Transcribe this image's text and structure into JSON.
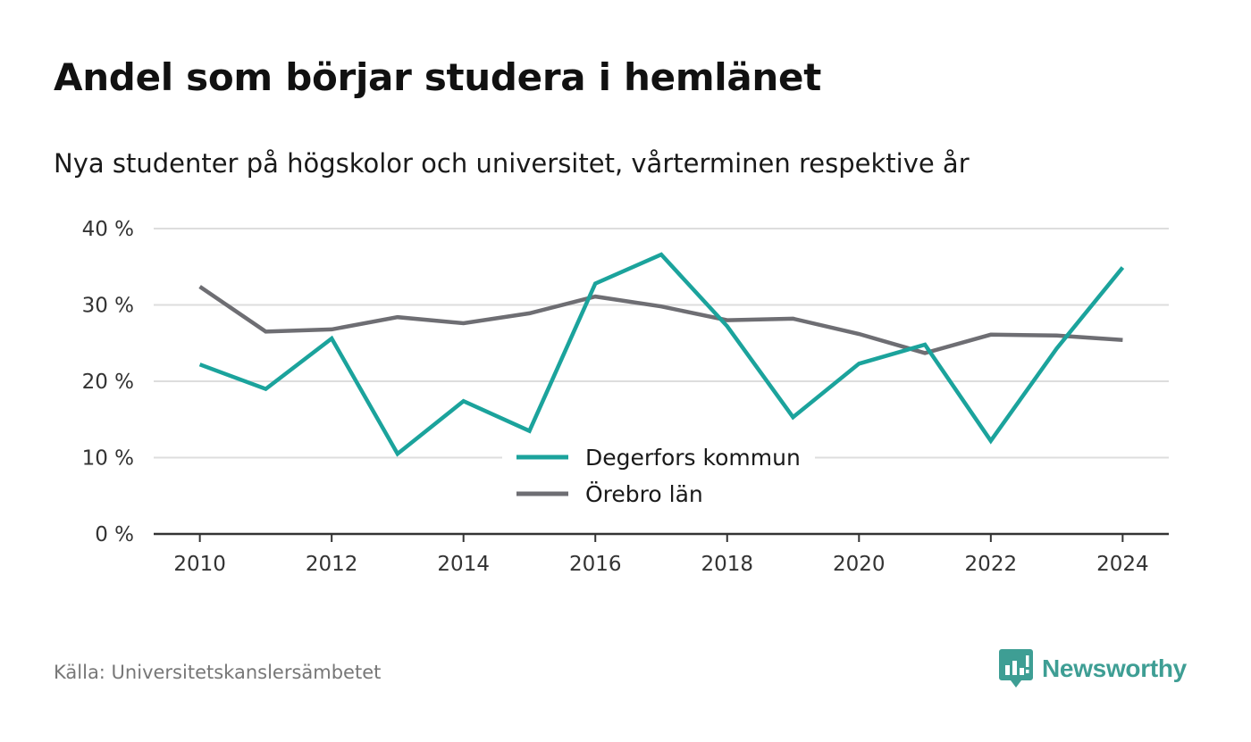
{
  "header": {
    "title": "Andel som börjar studera i hemlänet",
    "subtitle": "Nya studenter på högskolor och universitet, vårterminen respektive år"
  },
  "footer": {
    "source": "Källa: Universitetskanslersämbetet",
    "brand": "Newsworthy",
    "brand_icon": "newsworthy-logo-icon"
  },
  "colors": {
    "degerfors": "#1ba39c",
    "orebro": "#6e6e73",
    "grid": "#dddddd",
    "axis": "#333333",
    "brand": "#3e9e94"
  },
  "chart_data": {
    "type": "line",
    "x": [
      2010,
      2011,
      2012,
      2013,
      2014,
      2015,
      2016,
      2017,
      2018,
      2019,
      2020,
      2021,
      2022,
      2023,
      2024
    ],
    "x_ticks": [
      2010,
      2012,
      2014,
      2016,
      2018,
      2020,
      2022,
      2024
    ],
    "x_tick_labels": [
      "2010",
      "2012",
      "2014",
      "2016",
      "2018",
      "2020",
      "2022",
      "2024"
    ],
    "y_ticks": [
      0,
      10,
      20,
      30,
      40
    ],
    "y_tick_labels": [
      "0 %",
      "10 %",
      "20 %",
      "30 %",
      "40 %"
    ],
    "ylim": [
      0,
      40
    ],
    "xlim": [
      2009.3,
      2024.7
    ],
    "grid": true,
    "legend_position": "bottom-center",
    "series": [
      {
        "name": "Degerfors kommun",
        "color": "#1ba39c",
        "values": [
          22.2,
          19.0,
          25.6,
          10.5,
          17.4,
          13.5,
          32.8,
          36.6,
          27.2,
          15.3,
          22.3,
          24.8,
          12.2,
          24.3,
          34.9
        ]
      },
      {
        "name": "Örebro län",
        "color": "#6e6e73",
        "values": [
          32.4,
          26.5,
          26.8,
          28.4,
          27.6,
          28.9,
          31.1,
          29.8,
          28.0,
          28.2,
          26.2,
          23.7,
          26.1,
          26.0,
          25.4
        ]
      }
    ]
  }
}
